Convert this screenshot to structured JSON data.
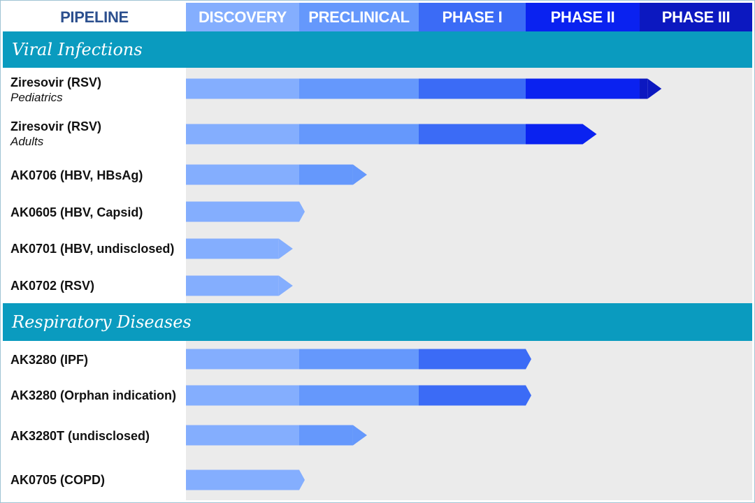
{
  "header": {
    "pipeline_label": "PIPELINE",
    "stages": [
      {
        "label": "DISCOVERY",
        "color": "#84aefe"
      },
      {
        "label": "PRECLINICAL",
        "color": "#6598fc"
      },
      {
        "label": "PHASE I",
        "color": "#3b6bf6"
      },
      {
        "label": "PHASE II",
        "color": "#0a22f0"
      },
      {
        "label": "PHASE III",
        "color": "#0c18c0"
      }
    ]
  },
  "chart_data": {
    "type": "bar",
    "orientation": "horizontal",
    "stages": [
      "DISCOVERY",
      "PRECLINICAL",
      "PHASE I",
      "PHASE II",
      "PHASE III"
    ],
    "xlim": [
      0,
      5
    ],
    "sections": [
      {
        "title": "Viral Infections",
        "programs": [
          {
            "name": "Ziresovir (RSV)",
            "subtitle": "Pediatrics",
            "progress": 4.07
          },
          {
            "name": "Ziresovir (RSV)",
            "subtitle": "Adults",
            "progress": 3.5
          },
          {
            "name": "AK0706 (HBV, HBsAg)",
            "subtitle": "",
            "progress": 1.45
          },
          {
            "name": "AK0605 (HBV, Capsid)",
            "subtitle": "",
            "progress": 1.0
          },
          {
            "name": "AK0701 (HBV, undisclosed)",
            "subtitle": "",
            "progress": 0.82
          },
          {
            "name": "AK0702 (RSV)",
            "subtitle": "",
            "progress": 0.82
          }
        ]
      },
      {
        "title": "Respiratory Diseases",
        "programs": [
          {
            "name": "AK3280 (IPF)",
            "subtitle": "",
            "progress": 3.0
          },
          {
            "name": "AK3280 (Orphan indication)",
            "subtitle": "",
            "progress": 3.0
          },
          {
            "name": "AK3280T (undisclosed)",
            "subtitle": "",
            "progress": 1.45
          },
          {
            "name": "AK0705 (COPD)",
            "subtitle": "",
            "progress": 1.0
          }
        ]
      }
    ]
  }
}
